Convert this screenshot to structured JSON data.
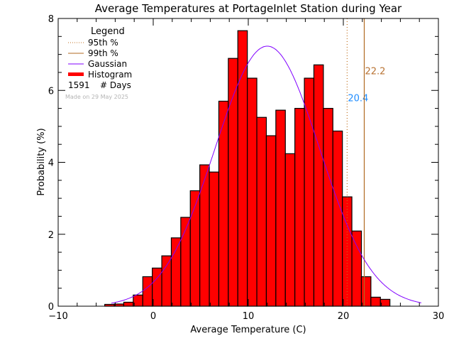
{
  "chart_data": {
    "type": "bar",
    "title": "Average Temperatures at PortageInlet Station during Year",
    "xlabel": "Average Temperature (C)",
    "ylabel": "Probability (%)",
    "xlim": [
      -10,
      30
    ],
    "ylim": [
      0,
      8
    ],
    "xticks": [
      -10,
      0,
      10,
      20,
      30
    ],
    "yticks": [
      0,
      2,
      4,
      6,
      8
    ],
    "grid": false,
    "bin_width": 1,
    "bins_start": [
      -5,
      -4,
      -3,
      -2,
      -1,
      0,
      1,
      2,
      3,
      4,
      5,
      6,
      7,
      8,
      9,
      10,
      11,
      12,
      13,
      14,
      15,
      16,
      17,
      18,
      19,
      20,
      21,
      22,
      23,
      24
    ],
    "values": [
      0.05,
      0.06,
      0.11,
      0.31,
      0.82,
      1.06,
      1.4,
      1.9,
      2.47,
      3.21,
      3.93,
      3.73,
      5.7,
      6.89,
      7.66,
      6.34,
      5.25,
      4.74,
      5.45,
      4.24,
      5.5,
      6.34,
      6.71,
      5.5,
      4.87,
      3.04,
      2.09,
      0.82,
      0.25,
      0.19
    ],
    "gaussian": {
      "mean": 12.0,
      "sigma": 5.5,
      "peak": 7.23,
      "x_range": [
        -4.4,
        28.3
      ]
    },
    "percentiles": [
      {
        "name": "95th %",
        "value": 20.4,
        "label": "20.4",
        "label_color": "#1e8cff",
        "line_color": "#c07020",
        "style": "dotted",
        "label_y": 5.7
      },
      {
        "name": "99th %",
        "value": 22.2,
        "label": "22.2",
        "label_color": "#b87333",
        "line_color": "#b06a20",
        "style": "solid",
        "label_y": 6.45
      }
    ],
    "legend": {
      "title": "Legend",
      "placement": "top-left",
      "entries": [
        "95th %",
        "99th %",
        "Gaussian",
        "Histogram"
      ],
      "count_value": "1591",
      "count_label": "# Days",
      "made_on": "Made on 29 May 2025"
    },
    "colors": {
      "histogram": "#ff0000",
      "gaussian": "#8000ff",
      "axis": "#000000",
      "made_on": "#b4b4b4"
    }
  }
}
